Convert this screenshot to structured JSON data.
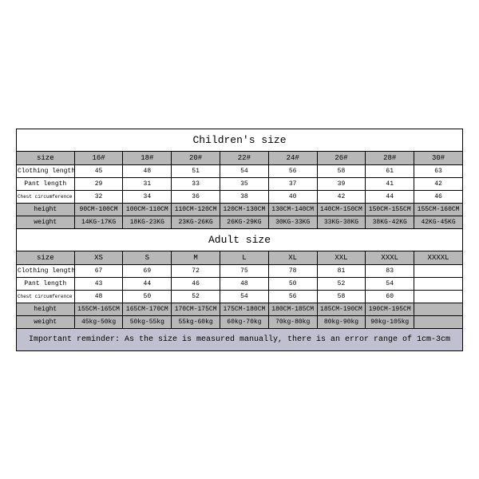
{
  "children": {
    "title": "Children's size",
    "headers": [
      "size",
      "16#",
      "18#",
      "20#",
      "22#",
      "24#",
      "26#",
      "28#",
      "30#"
    ],
    "rows": [
      {
        "label": "Clothing length",
        "cells": [
          "45",
          "48",
          "51",
          "54",
          "56",
          "58",
          "61",
          "63"
        ]
      },
      {
        "label": "Pant length",
        "cells": [
          "29",
          "31",
          "33",
          "35",
          "37",
          "39",
          "41",
          "42"
        ]
      },
      {
        "label": "Chest circumference 1/2",
        "cells": [
          "32",
          "34",
          "36",
          "38",
          "40",
          "42",
          "44",
          "46"
        ]
      },
      {
        "label": "height",
        "cells": [
          "90CM-100CM",
          "100CM-110CM",
          "110CM-120CM",
          "120CM-130CM",
          "130CM-140CM",
          "140CM-150CM",
          "150CM-155CM",
          "155CM-160CM"
        ]
      },
      {
        "label": "weight",
        "cells": [
          "14KG-17KG",
          "18KG-23KG",
          "23KG-26KG",
          "26KG-29KG",
          "30KG-33KG",
          "33KG-38KG",
          "38KG-42KG",
          "42KG-45KG"
        ]
      }
    ]
  },
  "adult": {
    "title": "Adult size",
    "headers": [
      "size",
      "XS",
      "S",
      "M",
      "L",
      "XL",
      "XXL",
      "XXXL",
      "XXXXL"
    ],
    "rows": [
      {
        "label": "Clothing length",
        "cells": [
          "67",
          "69",
          "72",
          "75",
          "78",
          "81",
          "83",
          ""
        ]
      },
      {
        "label": "Pant length",
        "cells": [
          "43",
          "44",
          "46",
          "48",
          "50",
          "52",
          "54",
          ""
        ]
      },
      {
        "label": "Chest circumference 1/2",
        "cells": [
          "48",
          "50",
          "52",
          "54",
          "56",
          "58",
          "60",
          ""
        ]
      },
      {
        "label": "height",
        "cells": [
          "155CM-165CM",
          "165CM-170CM",
          "170CM-175CM",
          "175CM-180CM",
          "180CM-185CM",
          "185CM-190CM",
          "190CM-195CM",
          ""
        ]
      },
      {
        "label": "weight",
        "cells": [
          "45kg-50kg",
          "50kg-55kg",
          "55kg-60kg",
          "60kg-70kg",
          "70kg-80kg",
          "80kg-90kg",
          "90kg-105kg",
          ""
        ]
      }
    ]
  },
  "reminder": "Important reminder: As the size is measured manually, there is an error range of 1cm-3cm",
  "style": {
    "header_bg": "#b8b8b8",
    "shade_bg": "#b8b8b8",
    "reminder_bg": "#c0c0d0",
    "border_color": "#000000",
    "font_family": "Courier New"
  }
}
